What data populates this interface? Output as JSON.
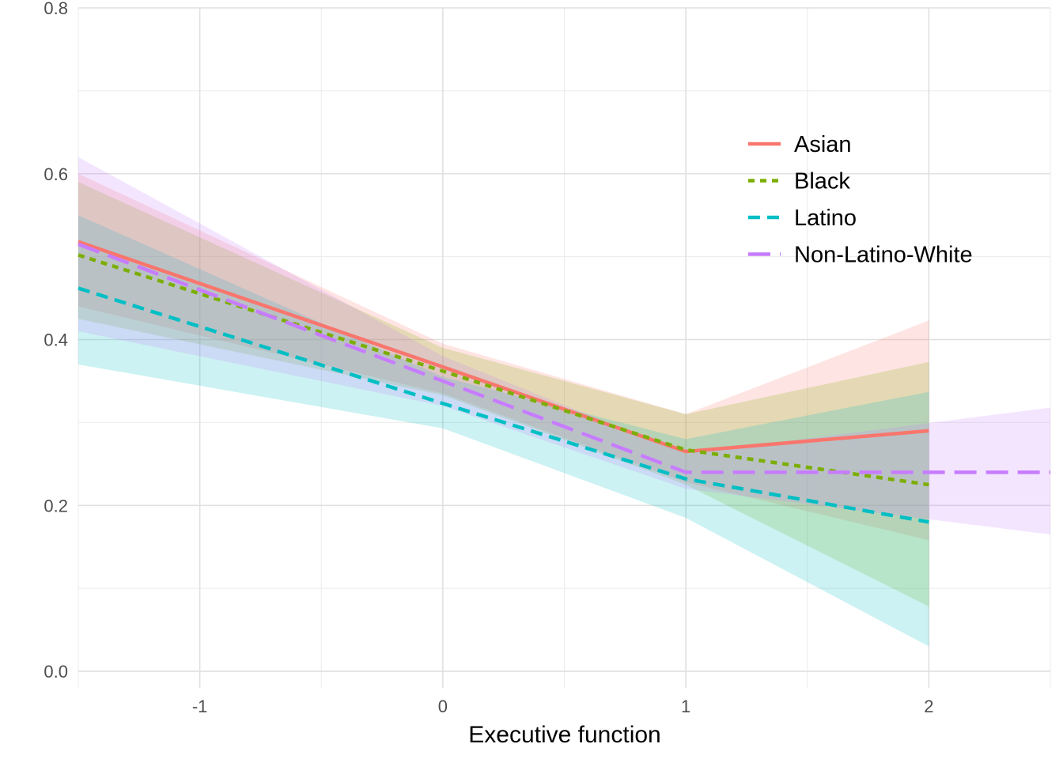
{
  "chart_data": {
    "type": "line",
    "title": "",
    "xlabel": "Executive function",
    "ylabel": "",
    "xlim": [
      -1.5,
      2.5
    ],
    "ylim": [
      -0.02,
      0.8
    ],
    "x_ticks": [
      -1,
      0,
      1,
      2
    ],
    "x_tick_labels": [
      "-1",
      "0",
      "1",
      "2"
    ],
    "y_ticks": [
      0.0,
      0.2,
      0.4,
      0.6,
      0.8
    ],
    "y_tick_labels": [
      "0.0",
      "0.2",
      "0.4",
      "0.6",
      "0.8"
    ],
    "grid": true,
    "legend_position": "top-right",
    "series": [
      {
        "name": "Asian",
        "color": "#F8766D",
        "dash": "solid",
        "x": [
          -1.5,
          0,
          1,
          2
        ],
        "y": [
          0.518,
          0.367,
          0.265,
          0.29
        ],
        "lower": [
          0.44,
          0.335,
          0.228,
          0.158
        ],
        "upper": [
          0.6,
          0.395,
          0.31,
          0.423
        ]
      },
      {
        "name": "Black",
        "color": "#7CAE00",
        "dash": "dotted",
        "x": [
          -1.5,
          0,
          1,
          2
        ],
        "y": [
          0.502,
          0.362,
          0.267,
          0.225
        ],
        "lower": [
          0.425,
          0.333,
          0.225,
          0.078
        ],
        "upper": [
          0.59,
          0.39,
          0.31,
          0.373
        ]
      },
      {
        "name": "Latino",
        "color": "#00BFC4",
        "dash": "dashed",
        "x": [
          -1.5,
          0,
          1,
          2
        ],
        "y": [
          0.462,
          0.323,
          0.232,
          0.18
        ],
        "lower": [
          0.37,
          0.293,
          0.185,
          0.03
        ],
        "upper": [
          0.55,
          0.355,
          0.28,
          0.337
        ]
      },
      {
        "name": "Non-Latino-White",
        "color": "#C77CFF",
        "dash": "longdash",
        "x": [
          -1.5,
          0,
          1,
          2.5
        ],
        "y": [
          0.515,
          0.35,
          0.24,
          0.24
        ],
        "lower": [
          0.41,
          0.32,
          0.22,
          0.165
        ],
        "upper": [
          0.62,
          0.38,
          0.262,
          0.318
        ]
      }
    ]
  }
}
